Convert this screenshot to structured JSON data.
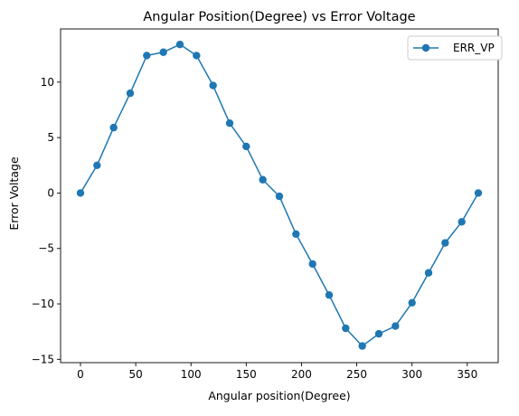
{
  "chart_data": {
    "type": "line",
    "title": "Angular Position(Degree) vs Error Voltage",
    "xlabel": "Angular position(Degree)",
    "ylabel": "Error Voltage",
    "xlim": [
      -18,
      378
    ],
    "ylim": [
      -15.3,
      14.8
    ],
    "xticks": [
      0,
      50,
      100,
      150,
      200,
      250,
      300,
      350
    ],
    "yticks": [
      -15,
      -10,
      -5,
      0,
      5,
      10
    ],
    "ytick_labels": [
      "−15",
      "−10",
      "−5",
      "0",
      "5",
      "10"
    ],
    "grid": false,
    "legend_position": "top-right",
    "series": [
      {
        "name": "ERR_VP",
        "color": "#1f77b4",
        "marker": "circle",
        "x": [
          0,
          15,
          30,
          45,
          60,
          75,
          90,
          105,
          120,
          135,
          150,
          165,
          180,
          195,
          210,
          225,
          240,
          255,
          270,
          285,
          300,
          315,
          330,
          345,
          360
        ],
        "y": [
          0,
          2.5,
          5.9,
          9.0,
          12.4,
          12.7,
          13.4,
          12.4,
          9.7,
          6.3,
          4.2,
          1.2,
          -0.3,
          -3.7,
          -6.4,
          -9.2,
          -12.2,
          -13.8,
          -12.7,
          -12.0,
          -9.9,
          -7.2,
          -4.5,
          -2.6,
          0
        ]
      }
    ]
  }
}
